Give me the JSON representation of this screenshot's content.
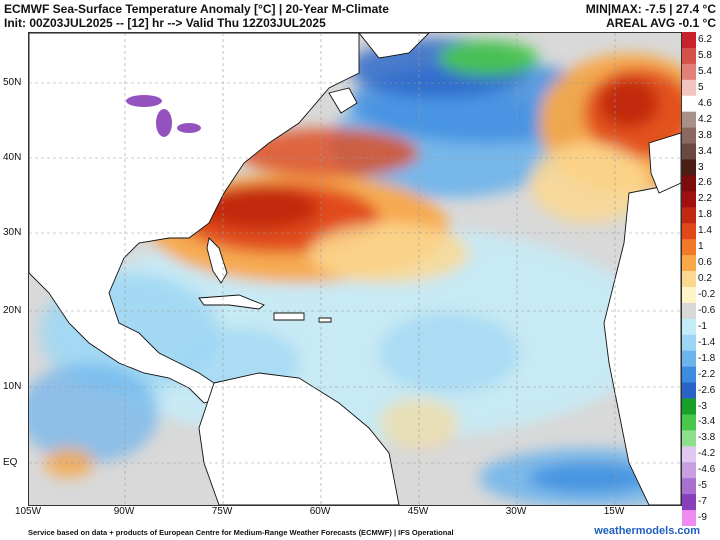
{
  "header": {
    "title": "ECMWF Sea-Surface Temperature Anomaly [°C] | 20-Year M-Climate",
    "init": "Init: 00Z03JUL2025 -- [12] hr --> Valid Thu 12Z03JUL2025",
    "minmax": "MIN|MAX: -7.5 | 27.4 °C",
    "areal": "AREAL AVG -0.1 °C"
  },
  "map": {
    "lat_labels": [
      "50N",
      "40N",
      "30N",
      "20N",
      "10N",
      "EQ"
    ],
    "lon_labels": [
      "105W",
      "90W",
      "75W",
      "60W",
      "45W",
      "30W",
      "15W"
    ],
    "land_color": "#ffffff",
    "neutral_ocean_color": "#d9d9d9",
    "gridlines": true
  },
  "colorbar": {
    "labels": [
      "6.2",
      "5.8",
      "5.4",
      "5",
      "4.6",
      "4.2",
      "3.8",
      "3.4",
      "3",
      "2.6",
      "2.2",
      "1.8",
      "1.4",
      "1",
      "0.6",
      "0.2",
      "-0.2",
      "-0.6",
      "-1",
      "-1.4",
      "-1.8",
      "-2.2",
      "-2.6",
      "-3",
      "-3.4",
      "-3.8",
      "-4.2",
      "-4.6",
      "-5",
      "-7",
      "-9"
    ],
    "colors": [
      "#c8232c",
      "#d4524a",
      "#e08078",
      "#f2c4c0",
      "#ffffff",
      "#a89088",
      "#8a6a60",
      "#6a4a40",
      "#4a1e14",
      "#7a0c0c",
      "#a01010",
      "#c02810",
      "#e04818",
      "#f07828",
      "#f8a848",
      "#fbd890",
      "#fdf4c8",
      "#d8d8d8",
      "#c4ecf8",
      "#9cd6f4",
      "#6cb4ec",
      "#3c8ce0",
      "#2864c8",
      "#18a028",
      "#48c848",
      "#8ce08c",
      "#e0c8f0",
      "#c8a0e0",
      "#a870d0",
      "#8840b8",
      "#f08cf0"
    ]
  },
  "footer": {
    "credit": "Service based on data + products of European Centre for Medium-Range Weather Forecasts (ECMWF) | IFS Operational",
    "site": "weathermodels.com"
  }
}
